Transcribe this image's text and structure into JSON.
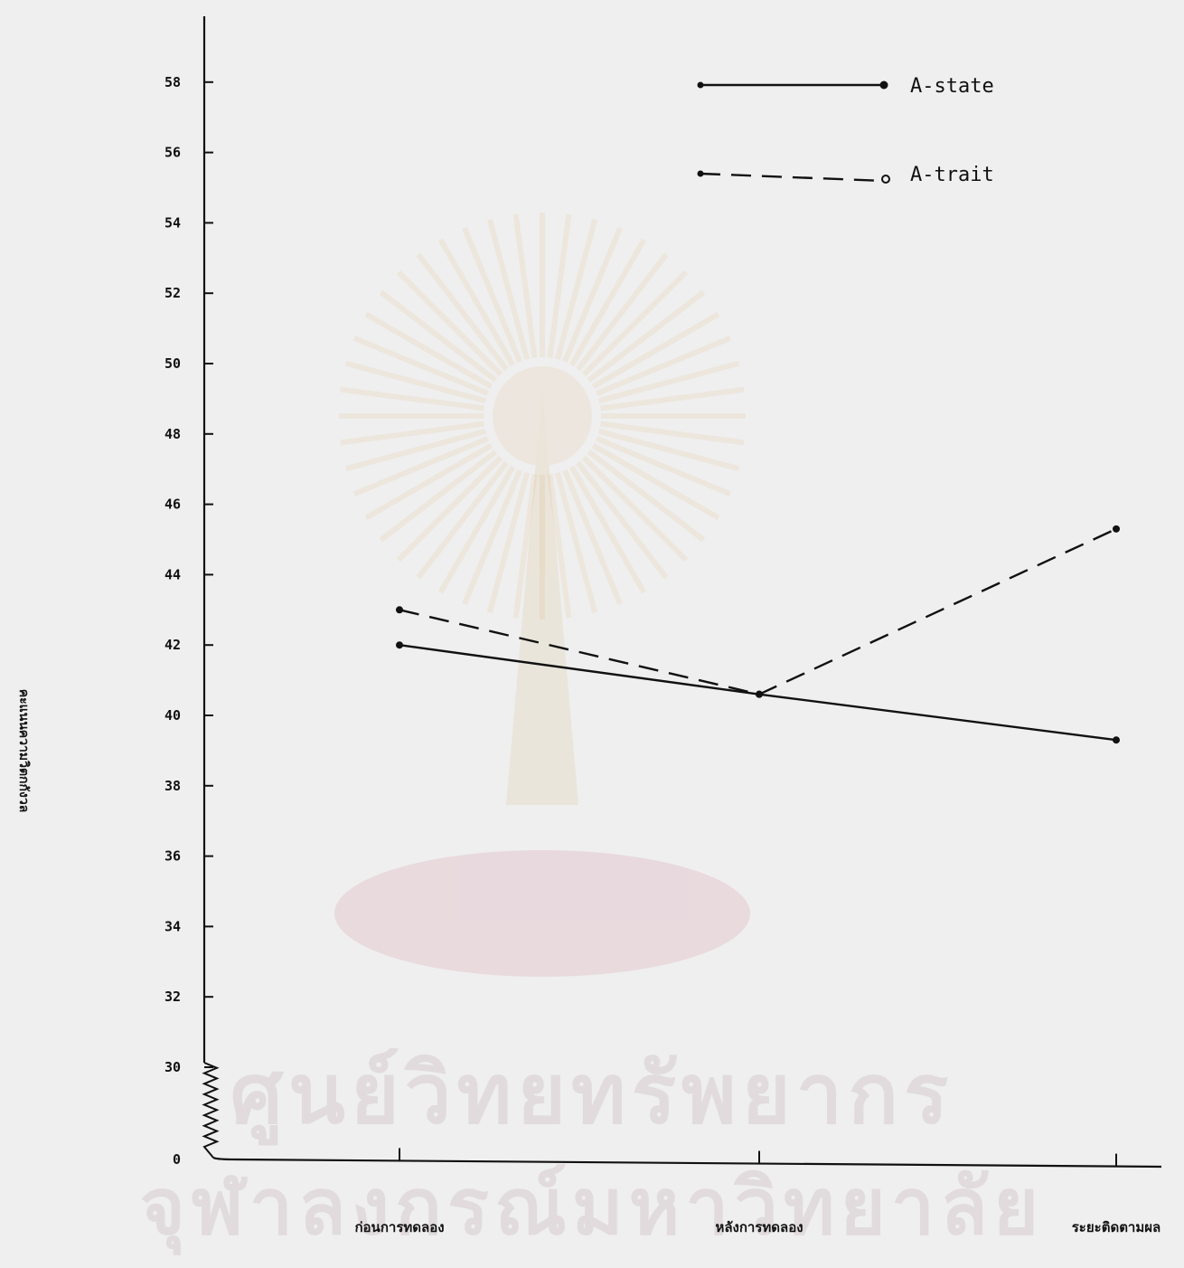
{
  "watermark": {
    "line1": "ศูนย์วิทยทรัพยากร",
    "line2": "จุฬาลงกรณ์มหาวิทยาลัย"
  },
  "chart_data": {
    "type": "line",
    "title": "",
    "xlabel": "",
    "ylabel": "คะแนนความวิตกกังวล",
    "categories": [
      "ก่อนการทดลอง",
      "หลังการทดลอง",
      "ระยะติดตามผล"
    ],
    "yticks": [
      0,
      30,
      32,
      34,
      36,
      38,
      40,
      42,
      44,
      46,
      48,
      50,
      52,
      54,
      56,
      58
    ],
    "ylim": [
      0,
      58
    ],
    "axis_break": "zigzag between 0 and 30",
    "grid": false,
    "legend_position": "top-right",
    "series": [
      {
        "name": "A-state",
        "style": "solid",
        "marker": "filled-dot",
        "color": "#111111",
        "values": [
          42.0,
          40.6,
          39.3
        ]
      },
      {
        "name": "A-trait",
        "style": "dashed",
        "marker": "open-dot",
        "color": "#111111",
        "values": [
          43.0,
          40.6,
          45.3
        ]
      }
    ]
  }
}
